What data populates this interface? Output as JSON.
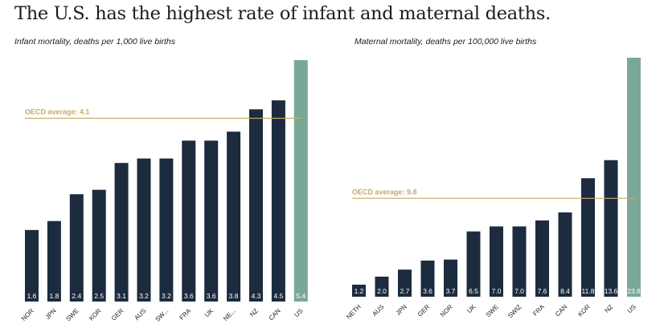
{
  "title": "The U.S. has the highest rate of infant and maternal deaths.",
  "colors": {
    "bar": "#1c2b3e",
    "highlight": "#7aa896",
    "average": "#c9a96a",
    "text": "#1c1c1c"
  },
  "chart_data": [
    {
      "type": "bar",
      "title": "Infant mortality, deaths per 1,000 live births",
      "categories": [
        "NOR",
        "JPN",
        "SWE",
        "KOR",
        "GER",
        "AUS",
        "SW...",
        "FRA",
        "UK",
        "NE...",
        "NZ",
        "CAN",
        "US"
      ],
      "values": [
        1.6,
        1.8,
        2.4,
        2.5,
        3.1,
        3.2,
        3.2,
        3.6,
        3.6,
        3.8,
        4.3,
        4.5,
        5.4
      ],
      "value_labels": [
        "1.6",
        "1.8",
        "2.4",
        "2.5",
        "3.1",
        "3.2",
        "3.2",
        "3.6",
        "3.6",
        "3.8",
        "4.3",
        "4.5",
        "5.4"
      ],
      "highlight": "US",
      "reference_line": {
        "label": "OECD average: 4.1",
        "value": 4.1
      },
      "ylim": [
        0,
        5.4
      ]
    },
    {
      "type": "bar",
      "title": "Maternal mortality, deaths per 100,000 live births",
      "categories": [
        "NETH",
        "AUS",
        "JPN",
        "GER",
        "NOR",
        "UK",
        "SWE",
        "SWIZ",
        "FRA",
        "CAN",
        "KOR",
        "NZ",
        "US"
      ],
      "values": [
        1.2,
        2.0,
        2.7,
        3.6,
        3.7,
        6.5,
        7.0,
        7.0,
        7.6,
        8.4,
        11.8,
        13.6,
        23.8
      ],
      "value_labels": [
        "1.2",
        "2.0",
        "2.7",
        "3.6",
        "3.7",
        "6.5",
        "7.0",
        "7.0",
        "7.6",
        "8.4",
        "11.8",
        "13.6",
        "23.8"
      ],
      "highlight": "US",
      "reference_line": {
        "label": "OECD average: 9.8",
        "value": 9.8
      },
      "ylim": [
        0,
        23.8
      ]
    }
  ]
}
